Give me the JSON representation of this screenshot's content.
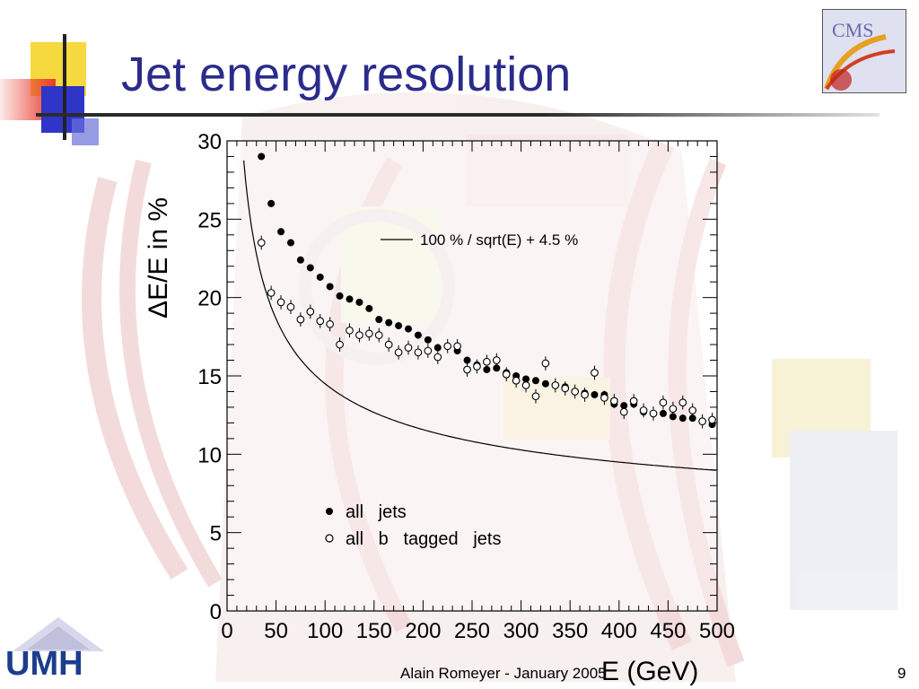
{
  "slide": {
    "title": "Jet energy resolution",
    "footer": "Alain Romeyer - January 2005",
    "page_number": "9",
    "logos": {
      "top_right_text": "CMS",
      "bottom_left_text": "UMH"
    }
  },
  "colors": {
    "title": "#2b2b8c",
    "deco_yellow": "#f5d21c",
    "deco_red": "#e83b2e",
    "deco_blue": "#2f35c8",
    "detector_red": "#d8a0a0"
  },
  "chart_data": {
    "type": "scatter",
    "title": "",
    "xlabel": "E (GeV)",
    "ylabel": "ΔE/E  in  %",
    "xlim": [
      0,
      500
    ],
    "ylim": [
      0,
      30
    ],
    "xticks": [
      0,
      50,
      100,
      150,
      200,
      250,
      300,
      350,
      400,
      450,
      500
    ],
    "yticks": [
      0,
      5,
      10,
      15,
      20,
      25,
      30
    ],
    "grid": false,
    "legend": [
      {
        "label": "all   jets",
        "marker": "filled-circle"
      },
      {
        "label": "all   b   tagged   jets",
        "marker": "open-circle"
      }
    ],
    "curve_label": "100 % / sqrt(E) + 4.5 %",
    "series": [
      {
        "name": "all   jets",
        "marker": "filled-circle",
        "x": [
          35,
          45,
          55,
          65,
          75,
          85,
          95,
          105,
          115,
          125,
          135,
          145,
          155,
          165,
          175,
          185,
          195,
          205,
          215,
          225,
          235,
          245,
          255,
          265,
          275,
          285,
          295,
          305,
          315,
          325,
          335,
          345,
          355,
          365,
          375,
          385,
          395,
          405,
          415,
          425,
          435,
          445,
          455,
          465,
          475,
          485,
          495
        ],
        "y": [
          29.0,
          26.0,
          24.2,
          23.5,
          22.4,
          21.9,
          21.3,
          20.7,
          20.1,
          19.9,
          19.7,
          19.3,
          18.6,
          18.4,
          18.2,
          18.0,
          17.6,
          17.3,
          16.8,
          16.9,
          16.6,
          16.0,
          15.7,
          15.4,
          15.5,
          15.2,
          15.0,
          14.8,
          14.7,
          14.5,
          14.4,
          14.3,
          14.0,
          13.9,
          13.8,
          13.8,
          13.2,
          13.1,
          13.2,
          12.7,
          12.6,
          12.6,
          12.4,
          12.3,
          12.3,
          12.1,
          11.9
        ]
      },
      {
        "name": "all   b   tagged   jets",
        "marker": "open-circle",
        "x": [
          35,
          45,
          55,
          65,
          75,
          85,
          95,
          105,
          115,
          125,
          135,
          145,
          155,
          165,
          175,
          185,
          195,
          205,
          215,
          225,
          235,
          245,
          255,
          265,
          275,
          285,
          295,
          305,
          315,
          325,
          335,
          345,
          355,
          365,
          375,
          385,
          395,
          405,
          415,
          425,
          435,
          445,
          455,
          465,
          475,
          485,
          495
        ],
        "y": [
          23.5,
          20.3,
          19.7,
          19.4,
          18.6,
          19.1,
          18.5,
          18.3,
          17.0,
          17.9,
          17.6,
          17.7,
          17.6,
          17.0,
          16.5,
          16.8,
          16.5,
          16.6,
          16.2,
          16.9,
          16.9,
          15.4,
          15.6,
          15.9,
          16.0,
          15.1,
          14.7,
          14.4,
          13.7,
          15.8,
          14.4,
          14.2,
          14.0,
          13.8,
          15.2,
          13.6,
          13.4,
          12.7,
          13.4,
          12.8,
          12.6,
          13.3,
          12.9,
          13.3,
          12.8,
          12.1,
          12.2
        ]
      }
    ]
  }
}
